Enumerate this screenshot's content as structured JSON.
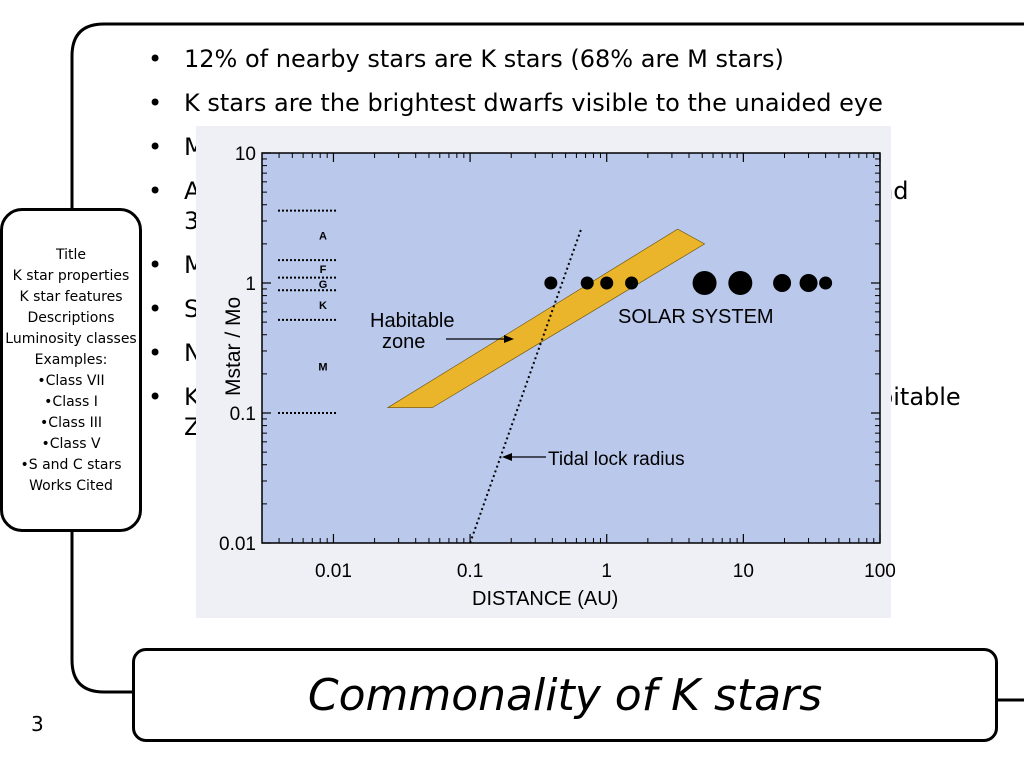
{
  "bullets": [
    "12% of nearby stars are K stars (68% are M stars)",
    "K stars are the brightest dwarfs visible to the unaided eye",
    "M",
    "A",
    "3",
    "M",
    "S",
    "N",
    "K",
    "Z"
  ],
  "bullet_right_fragments": [
    "nd",
    "bitable"
  ],
  "nav": {
    "items": [
      "Title",
      "K star properties",
      "K star features",
      "Descriptions",
      "Luminosity classes",
      "Examples:",
      "•Class VII",
      "•Class I",
      "•Class III",
      "•Class V",
      "•S and C stars",
      "Works Cited"
    ]
  },
  "figure": {
    "ylabel": "Mstar / Mo",
    "xlabel": "DISTANCE  (AU)",
    "x_ticks": [
      "0.01",
      "0.1",
      "1",
      "10",
      "100"
    ],
    "y_ticks": [
      "10",
      "1",
      "0.1",
      "0.01"
    ],
    "spectral_classes": [
      "A",
      "F",
      "G",
      "K",
      "M"
    ],
    "labels": {
      "habitable": "Habitable",
      "zone": "zone",
      "solar_system": "SOLAR SYSTEM",
      "tidal": "Tidal lock radius"
    },
    "colors": {
      "background": "#b9c8eb",
      "habitable_zone": "#eab52a"
    }
  },
  "chart_data": {
    "type": "scatter",
    "xlabel": "DISTANCE  (AU)",
    "ylabel": "Mstar / Mo",
    "x_scale": "log",
    "y_scale": "log",
    "xlim": [
      0.003,
      100
    ],
    "ylim": [
      0.01,
      10
    ],
    "series": [
      {
        "name": "SOLAR SYSTEM",
        "points": [
          [
            0.39,
            1
          ],
          [
            0.72,
            1
          ],
          [
            1.0,
            1
          ],
          [
            1.52,
            1
          ],
          [
            5.2,
            1
          ],
          [
            9.5,
            1
          ],
          [
            19.2,
            1
          ],
          [
            30,
            1
          ],
          [
            40,
            1
          ]
        ],
        "sizes": [
          "small",
          "small",
          "small",
          "small",
          "large",
          "large",
          "medium",
          "medium",
          "small"
        ]
      }
    ],
    "habitable_zone_polygon": [
      [
        0.025,
        0.11
      ],
      [
        0.053,
        0.11
      ],
      [
        5.2,
        2.0
      ],
      [
        3.3,
        2.6
      ]
    ],
    "tidal_lock_line": [
      [
        0.1,
        0.01
      ],
      [
        0.65,
        2.6
      ]
    ],
    "spectral_class_boundaries_mass": [
      3.6,
      1.5,
      1.1,
      0.88,
      0.52,
      0.1
    ],
    "annotations": [
      "Habitable zone",
      "Tidal lock radius",
      "SOLAR SYSTEM"
    ]
  },
  "title": "Commonality of K stars",
  "slide_number": "3"
}
